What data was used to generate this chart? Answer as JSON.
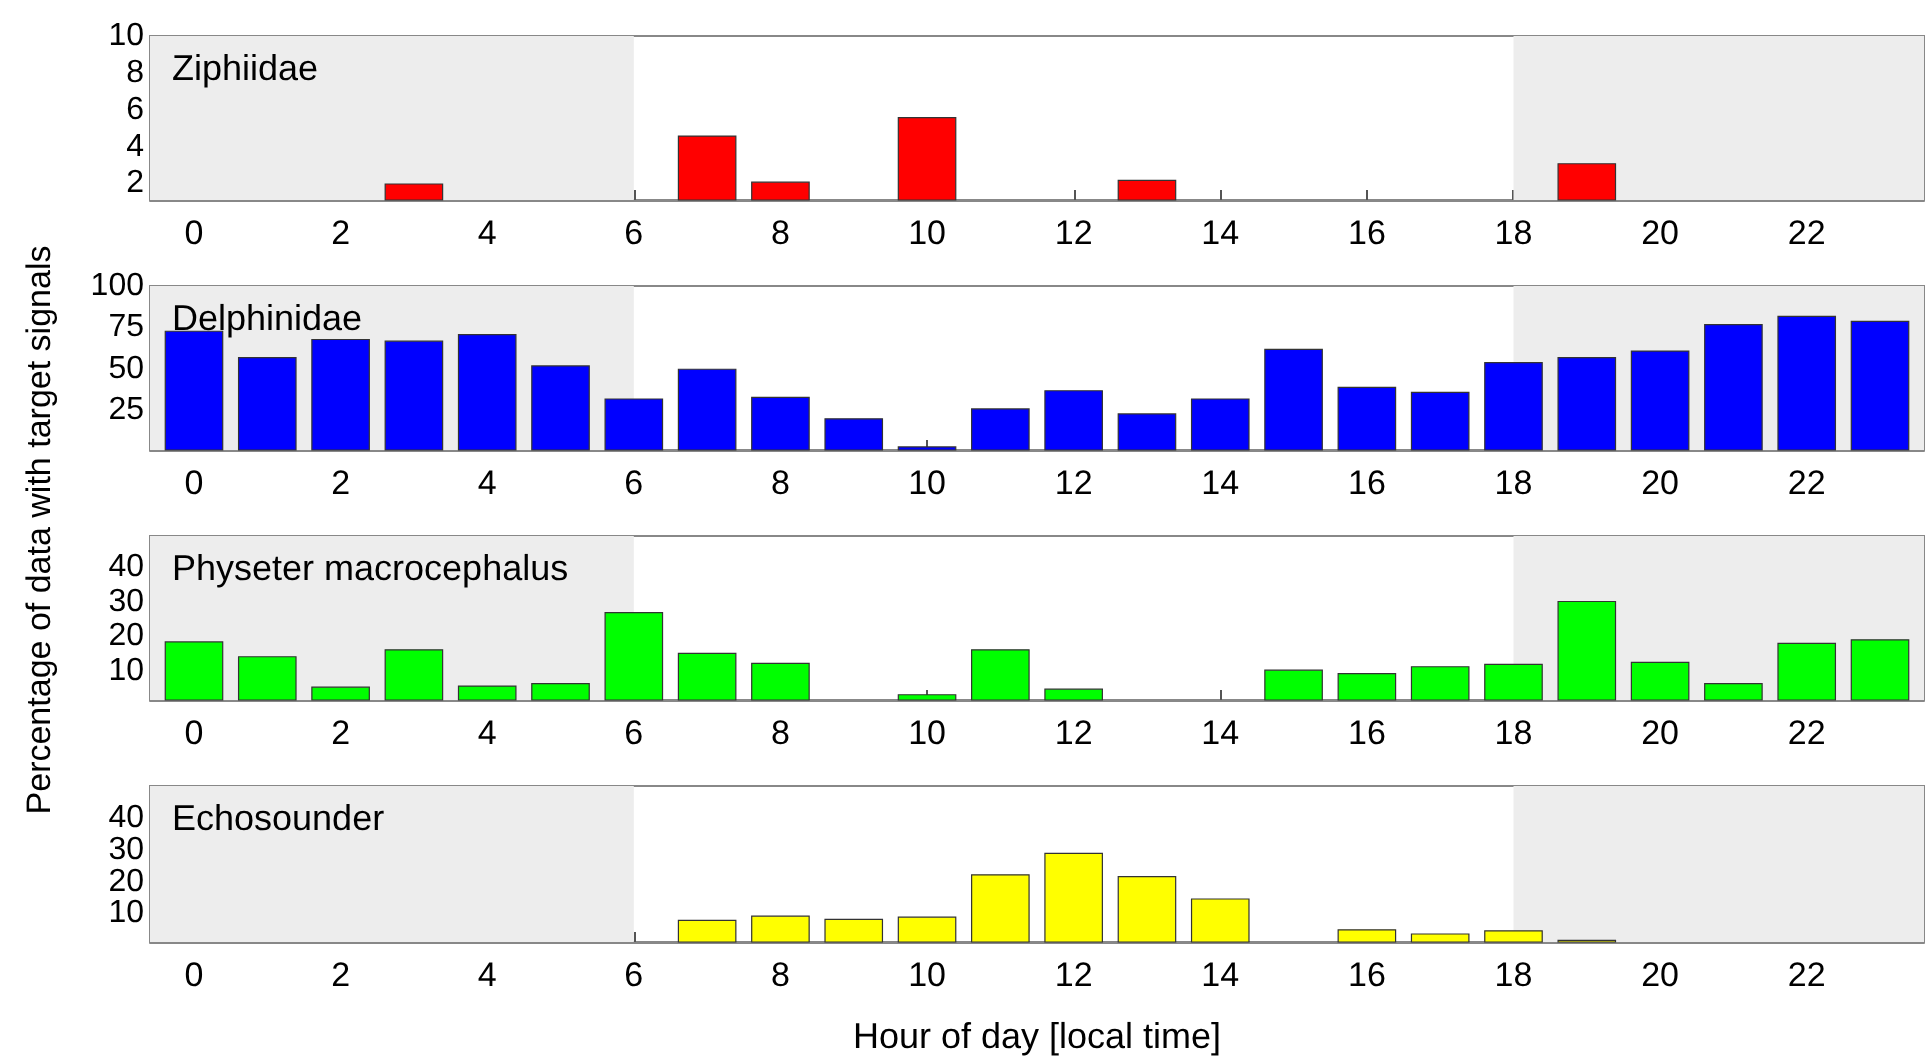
{
  "chart_data": [
    {
      "type": "bar",
      "title": "Ziphiidae",
      "ylabel": "Percentage of data with target signals",
      "x": [
        3,
        7,
        8,
        10,
        13,
        19
      ],
      "xlim": [
        -0.6,
        23.6
      ],
      "xticks": [
        0,
        2,
        4,
        6,
        8,
        10,
        12,
        14,
        16,
        18,
        20,
        22
      ],
      "ylim": [
        1.1,
        10
      ],
      "yticks": [
        2,
        4,
        6,
        8,
        10
      ],
      "series": [
        {
          "color": "#ff0000",
          "values": [
            2.0,
            4.6,
            2.1,
            5.6,
            2.2,
            3.1
          ]
        }
      ],
      "bands": [
        {
          "axis": "x",
          "from": -0.6,
          "to": 6,
          "color": "#ededed"
        },
        {
          "axis": "x",
          "from": 18,
          "to": 23.6,
          "color": "#ededed"
        }
      ]
    },
    {
      "type": "bar",
      "title": "Delphinidae",
      "x": [
        0,
        1,
        2,
        3,
        4,
        5,
        6,
        7,
        8,
        9,
        10,
        11,
        12,
        13,
        14,
        15,
        16,
        17,
        18,
        19,
        20,
        21,
        22,
        23
      ],
      "xlim": [
        -0.6,
        23.6
      ],
      "xticks": [
        0,
        2,
        4,
        6,
        8,
        10,
        12,
        14,
        16,
        18,
        20,
        22
      ],
      "ylim": [
        0.8,
        100
      ],
      "yticks": [
        25,
        50,
        75,
        100
      ],
      "series": [
        {
          "color": "#0000ff",
          "values": [
            73,
            57,
            68,
            67,
            71,
            52,
            32,
            50,
            33,
            20,
            3,
            26,
            37,
            23,
            32,
            62,
            39,
            36,
            54,
            57,
            61,
            77,
            82,
            79
          ]
        }
      ],
      "bands": [
        {
          "axis": "x",
          "from": -0.6,
          "to": 6,
          "color": "#ededed"
        },
        {
          "axis": "x",
          "from": 18,
          "to": 23.6,
          "color": "#ededed"
        }
      ]
    },
    {
      "type": "bar",
      "title": "Physeter macrocephalus",
      "x": [
        0,
        1,
        2,
        3,
        4,
        5,
        6,
        7,
        8,
        9,
        10,
        11,
        12,
        13,
        14,
        15,
        16,
        17,
        18,
        19,
        20,
        21,
        22,
        23
      ],
      "xlim": [
        -0.6,
        23.6
      ],
      "xticks": [
        0,
        2,
        4,
        6,
        8,
        10,
        12,
        14,
        16,
        18,
        20,
        22
      ],
      "ylim": [
        1.5,
        49
      ],
      "yticks": [
        10,
        20,
        30,
        40
      ],
      "series": [
        {
          "color": "#00ff00",
          "values": [
            18.5,
            14.2,
            5.4,
            16.2,
            5.7,
            6.4,
            27,
            15.2,
            12.3,
            null,
            3.2,
            16.2,
            4.8,
            null,
            null,
            10.3,
            9.3,
            11.3,
            12,
            30.2,
            12.6,
            6.4,
            18.1,
            19.1
          ]
        }
      ],
      "bands": [
        {
          "axis": "x",
          "from": -0.6,
          "to": 6,
          "color": "#ededed"
        },
        {
          "axis": "x",
          "from": 18,
          "to": 23.6,
          "color": "#ededed"
        }
      ]
    },
    {
      "type": "bar",
      "title": "Echosounder",
      "xlabel": "Hour of day [local time]",
      "x": [
        7,
        8,
        9,
        10,
        11,
        12,
        13,
        14,
        16,
        17,
        18,
        19
      ],
      "xlim": [
        -0.6,
        23.6
      ],
      "xticks": [
        0,
        2,
        4,
        6,
        8,
        10,
        12,
        14,
        16,
        18,
        20,
        22
      ],
      "ylim": [
        1,
        50
      ],
      "yticks": [
        10,
        20,
        30,
        40
      ],
      "series": [
        {
          "color": "#ffff00",
          "values": [
            8,
            9.3,
            8.3,
            9,
            22.3,
            29,
            21.7,
            14.7,
            5,
            3.7,
            4.7,
            1.7
          ]
        }
      ],
      "bands": [
        {
          "axis": "x",
          "from": -0.6,
          "to": 6,
          "color": "#ededed"
        },
        {
          "axis": "x",
          "from": 18,
          "to": 23.6,
          "color": "#ededed"
        }
      ]
    }
  ]
}
